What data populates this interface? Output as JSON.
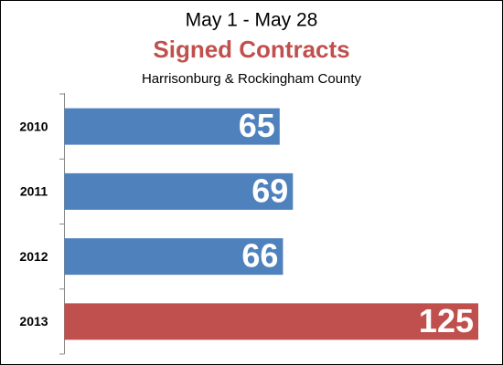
{
  "chart_data": {
    "type": "bar",
    "orientation": "horizontal",
    "title": "May 1 - May 28",
    "subtitle": "Signed Contracts",
    "caption": "Harrisonburg & Rockingham County",
    "categories": [
      "2010",
      "2011",
      "2012",
      "2013"
    ],
    "values": [
      65,
      69,
      66,
      125
    ],
    "colors": [
      "#4f81bd",
      "#4f81bd",
      "#4f81bd",
      "#c0504d"
    ],
    "subtitle_color": "#c0504d",
    "value_label_color": "#ffffff"
  }
}
